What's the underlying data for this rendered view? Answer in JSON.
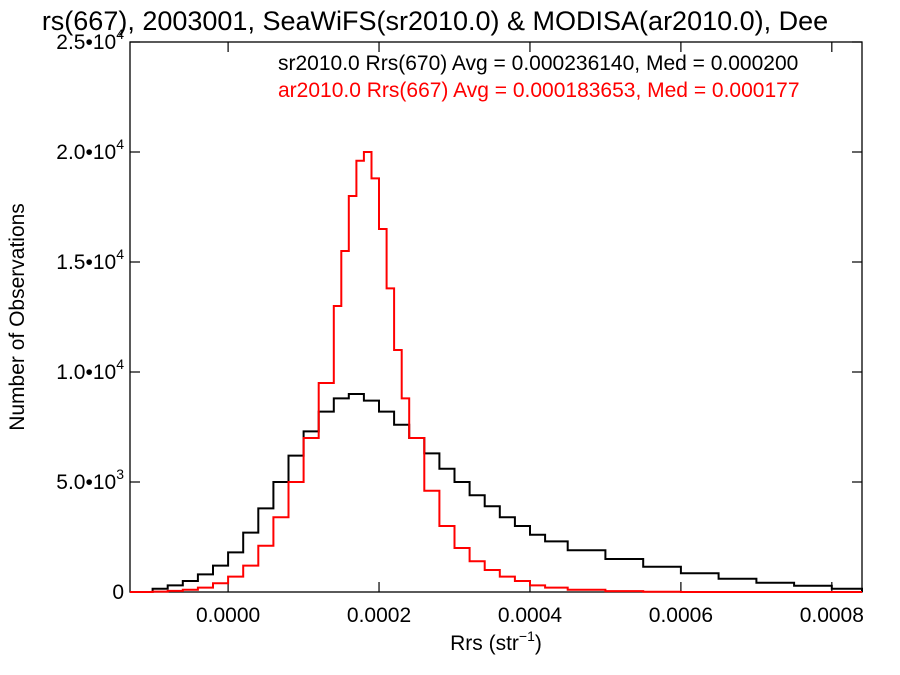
{
  "chart_data": {
    "type": "line",
    "title": "rs(667), 2003001, SeaWiFS(sr2010.0) & MODISA(ar2010.0), Dee",
    "xlabel_main": "Rrs (str",
    "xlabel_sup": "−1",
    "xlabel_end": ")",
    "ylabel": "Number of Observations",
    "xlim": [
      -0.00013,
      0.00084
    ],
    "ylim": [
      0,
      25000
    ],
    "x_ticks": [
      {
        "value": 0.0,
        "label": "0.0000"
      },
      {
        "value": 0.0002,
        "label": "0.0002"
      },
      {
        "value": 0.0004,
        "label": "0.0004"
      },
      {
        "value": 0.0006,
        "label": "0.0006"
      },
      {
        "value": 0.0008,
        "label": "0.0008"
      }
    ],
    "y_ticks": [
      {
        "value": 0,
        "base": "0",
        "exp": ""
      },
      {
        "value": 5000,
        "base": "5.0•10",
        "exp": "3"
      },
      {
        "value": 10000,
        "base": "1.0•10",
        "exp": "4"
      },
      {
        "value": 15000,
        "base": "1.5•10",
        "exp": "4"
      },
      {
        "value": 20000,
        "base": "2.0•10",
        "exp": "4"
      },
      {
        "value": 25000,
        "base": "2.5•10",
        "exp": "4"
      }
    ],
    "series": [
      {
        "name": "sr2010.0 Rrs(670) Avg = 0.000236140, Med = 0.000200",
        "color": "#000000",
        "x": [
          -0.00013,
          -0.0001,
          -8e-05,
          -6e-05,
          -4e-05,
          -2e-05,
          0.0,
          2e-05,
          4e-05,
          6e-05,
          8e-05,
          0.0001,
          0.00012,
          0.00014,
          0.00016,
          0.00018,
          0.0002,
          0.00022,
          0.00024,
          0.00026,
          0.00028,
          0.0003,
          0.00032,
          0.00034,
          0.00036,
          0.00038,
          0.0004,
          0.00042,
          0.00045,
          0.0005,
          0.00055,
          0.0006,
          0.00065,
          0.0007,
          0.00075,
          0.0008,
          0.00084
        ],
        "y": [
          0,
          150,
          300,
          500,
          800,
          1200,
          1800,
          2700,
          3800,
          5000,
          6200,
          7300,
          8200,
          8800,
          9000,
          8700,
          8200,
          7600,
          7000,
          6300,
          5600,
          5000,
          4400,
          3900,
          3400,
          3000,
          2600,
          2300,
          1900,
          1500,
          1150,
          850,
          600,
          420,
          280,
          150,
          0
        ]
      },
      {
        "name": "ar2010.0 Rrs(667) Avg = 0.000183653, Med = 0.000177",
        "color": "#ff0000",
        "x": [
          -0.00013,
          -0.0001,
          -8e-05,
          -6e-05,
          -4e-05,
          -2e-05,
          0.0,
          2e-05,
          4e-05,
          6e-05,
          8e-05,
          0.0001,
          0.00012,
          0.00014,
          0.00015,
          0.00016,
          0.00017,
          0.00018,
          0.00019,
          0.0002,
          0.00021,
          0.00022,
          0.00023,
          0.00024,
          0.00026,
          0.00028,
          0.0003,
          0.00032,
          0.00034,
          0.00036,
          0.00038,
          0.0004,
          0.00042,
          0.00045,
          0.0005,
          0.00055,
          0.0006,
          0.00084
        ],
        "y": [
          0,
          20,
          50,
          100,
          200,
          400,
          700,
          1200,
          2100,
          3400,
          5000,
          7000,
          9500,
          13000,
          15500,
          18000,
          19600,
          20000,
          18800,
          16500,
          13800,
          11000,
          8800,
          7000,
          4600,
          3000,
          2000,
          1400,
          1000,
          700,
          500,
          300,
          200,
          100,
          40,
          10,
          0,
          0
        ]
      }
    ]
  }
}
